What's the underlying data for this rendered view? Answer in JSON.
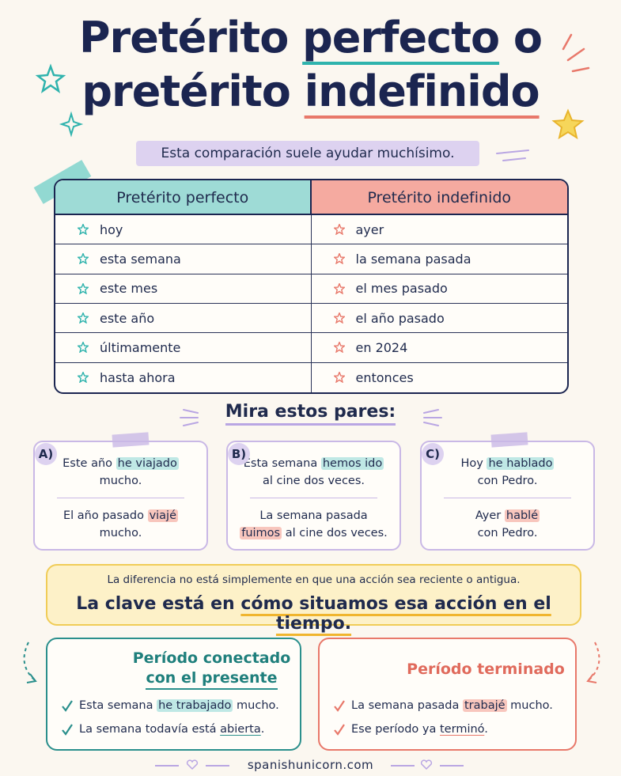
{
  "header": {
    "title": {
      "line1_start": "Pretérito",
      "line1_emphasis": "perfecto",
      "line1_end": "o",
      "line2_start": "pretérito",
      "line2_emphasis": "indefinido"
    },
    "subtitle": "Esta comparación suele ayudar muchísimo."
  },
  "table": {
    "headers": [
      "Pretérito perfecto",
      "Pretérito indefinido"
    ],
    "rows": [
      [
        "hoy",
        "ayer"
      ],
      [
        "esta semana",
        "la semana pasada"
      ],
      [
        "este mes",
        "el mes pasado"
      ],
      [
        "este año",
        "el año pasado"
      ],
      [
        "últimamente",
        "en 2024"
      ],
      [
        "hasta ahora",
        "entonces"
      ]
    ]
  },
  "pairs": {
    "heading": "Mira estos pares:",
    "items": [
      {
        "label": "A)",
        "first": {
          "before": "Este año ",
          "highlight": "he viajado",
          "after": " mucho."
        },
        "second": {
          "before": "El año pasado ",
          "highlight": "viajé",
          "after": " mucho."
        }
      },
      {
        "label": "B)",
        "first": {
          "before": "Esta semana ",
          "highlight": "hemos ido",
          "after": " al cine dos veces."
        },
        "second": {
          "before": "La semana pasada ",
          "highlight": "fuimos",
          "after": " al cine dos veces."
        }
      },
      {
        "label": "C)",
        "first": {
          "before": "Hoy ",
          "highlight": "he hablado",
          "after": " con Pedro."
        },
        "second": {
          "before": "Ayer ",
          "highlight": "hablé",
          "after": " con Pedro."
        }
      }
    ]
  },
  "note": {
    "line1": "La diferencia no está simplemente en que una acción sea reciente o antigua.",
    "line2_start": "La clave está en ",
    "line2_emphasis": "cómo situamos esa acción en el tiempo."
  },
  "periods": [
    {
      "title_line1": "Período conectado",
      "title_line2": "con el presente",
      "examples": [
        {
          "before": "Esta semana ",
          "highlight": "he trabajado",
          "after": " mucho."
        },
        {
          "before": "La semana todavía está ",
          "highlight": "abierta",
          "after": "."
        }
      ]
    },
    {
      "title_line1": "Período terminado",
      "examples": [
        {
          "before": "La semana pasada ",
          "highlight": "trabajé",
          "after": " mucho."
        },
        {
          "before": "Ese período ya ",
          "highlight": "terminó",
          "after": "."
        }
      ]
    }
  ],
  "footer": "spanishunicorn.com"
}
